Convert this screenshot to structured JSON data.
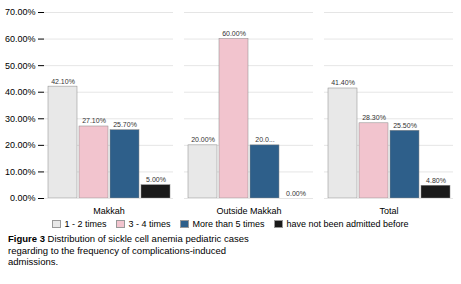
{
  "chart_data": {
    "type": "bar",
    "categories": [
      "Makkah",
      "Outside Makkah",
      "Total"
    ],
    "series": [
      {
        "name": "1 - 2 times",
        "color": "#e8e8e8",
        "values": [
          42.1,
          20.0,
          41.4
        ],
        "value_labels": [
          "42.10%",
          "20.00%",
          "41.40%"
        ]
      },
      {
        "name": "3 - 4 times",
        "color": "#f2c4ce",
        "values": [
          27.1,
          60.0,
          28.3
        ],
        "value_labels": [
          "27.10%",
          "60.00%",
          "28.30%"
        ]
      },
      {
        "name": "More than 5 times",
        "color": "#2e5f8a",
        "values": [
          25.7,
          20.0,
          25.5
        ],
        "value_labels": [
          "25.70%",
          "20.0...",
          "25.50%"
        ]
      },
      {
        "name": "have not been admitted before",
        "color": "#1a1a1a",
        "values": [
          5.0,
          0.0,
          4.8
        ],
        "value_labels": [
          "5.00%",
          "0.00%",
          "4.80%"
        ]
      }
    ],
    "ylim": [
      0,
      70
    ],
    "yticks": [
      {
        "value": 0,
        "label": "0.00%"
      },
      {
        "value": 10,
        "label": "10.00%"
      },
      {
        "value": 20,
        "label": "20.00%"
      },
      {
        "value": 30,
        "label": "30.00%"
      },
      {
        "value": 40,
        "label": "40.00%"
      },
      {
        "value": 50,
        "label": "50.00%"
      },
      {
        "value": 60,
        "label": "60.00%"
      },
      {
        "value": 70,
        "label": "70.00%"
      }
    ],
    "grid": true,
    "legend": "bottom",
    "data_labels": true,
    "caption": [
      "Figure 3",
      " Distribution of sickle cell anemia pediatric cases\nregarding to the frequency of complications-induced\nadmissions."
    ]
  }
}
